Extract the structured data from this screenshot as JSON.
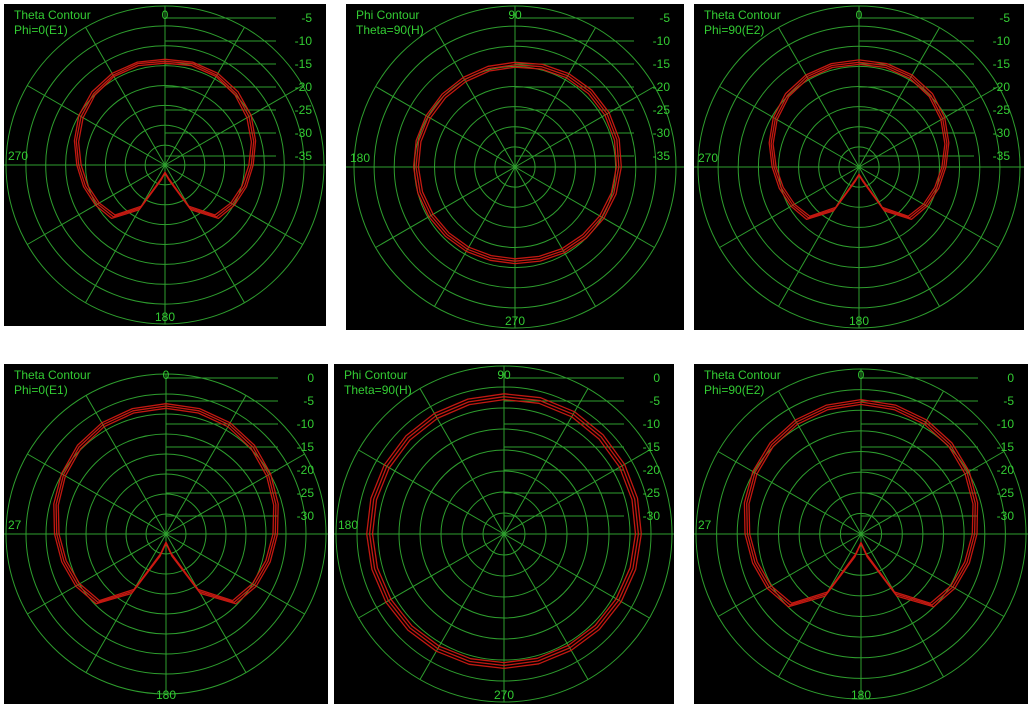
{
  "colors": {
    "background": "#000000",
    "grid": "#2e9e2e",
    "label": "#33cc33",
    "trace": "#cc1a12"
  },
  "chart_data": [
    {
      "type": "polar",
      "title": "Theta Contour",
      "subtitle": "Phi=0(E1)",
      "angle_labels": {
        "top": "0",
        "left": "270",
        "bottom": "180",
        "right": ""
      },
      "radial_ticks": [
        "-5",
        "-10",
        "-15",
        "-20",
        "-25",
        "-30",
        "-35"
      ],
      "rlim": [
        -40,
        0
      ],
      "pattern": "theta",
      "series": [
        {
          "values": [
            -13.4,
            -13.2,
            -13.4,
            -14.0,
            -15.0,
            -16.4,
            -17.8,
            -18.8,
            -19.8,
            -21.0,
            -27.0,
            -36.0,
            -38.0,
            -36.0,
            -27.0,
            -21.0,
            -19.8,
            -18.8,
            -17.8,
            -16.4,
            -15.0,
            -14.0,
            -13.4,
            -13.2
          ]
        },
        {
          "values": [
            -13.9,
            -13.6,
            -13.9,
            -14.6,
            -15.6,
            -16.9,
            -18.3,
            -19.3,
            -20.4,
            -21.6,
            -27.5,
            -36.3,
            -38.0,
            -36.3,
            -27.5,
            -21.6,
            -20.4,
            -19.3,
            -18.3,
            -16.9,
            -15.6,
            -14.6,
            -13.9,
            -13.6
          ]
        },
        {
          "values": [
            -14.4,
            -14.1,
            -14.3,
            -15.1,
            -16.2,
            -17.5,
            -18.9,
            -19.9,
            -20.9,
            -22.2,
            -28.0,
            -36.6,
            -38.2,
            -36.6,
            -28.0,
            -22.2,
            -20.9,
            -19.9,
            -18.9,
            -17.5,
            -16.2,
            -15.1,
            -14.3,
            -14.1
          ]
        }
      ]
    },
    {
      "type": "polar",
      "title": "Phi Contour",
      "subtitle": "Theta=90(H)",
      "angle_labels": {
        "top": "90",
        "left": "180",
        "bottom": "270",
        "right": ""
      },
      "radial_ticks": [
        "-5",
        "-10",
        "-15",
        "-20",
        "-25",
        "-30",
        "-35"
      ],
      "rlim": [
        -40,
        0
      ],
      "pattern": "phi",
      "series": [
        {
          "values": [
            -14.0,
            -13.6,
            -13.2,
            -13.0,
            -13.0,
            -13.2,
            -13.6,
            -14.0,
            -14.5,
            -15.0,
            -15.4,
            -15.8,
            -16.0,
            -16.0,
            -15.8,
            -15.6,
            -15.3,
            -15.0,
            -14.8,
            -14.6,
            -14.5,
            -14.4,
            -14.3,
            -14.1
          ]
        },
        {
          "values": [
            -14.6,
            -14.2,
            -13.8,
            -13.6,
            -13.6,
            -13.8,
            -14.2,
            -14.6,
            -15.1,
            -15.6,
            -16.0,
            -16.4,
            -16.6,
            -16.6,
            -16.4,
            -16.2,
            -15.9,
            -15.6,
            -15.4,
            -15.2,
            -15.1,
            -15.0,
            -14.9,
            -14.7
          ]
        },
        {
          "values": [
            -15.2,
            -14.8,
            -14.4,
            -14.2,
            -14.2,
            -14.4,
            -14.8,
            -15.2,
            -15.7,
            -16.2,
            -16.6,
            -17.0,
            -17.2,
            -17.2,
            -17.0,
            -16.8,
            -16.5,
            -16.2,
            -16.0,
            -15.8,
            -15.7,
            -15.6,
            -15.5,
            -15.3
          ]
        }
      ]
    },
    {
      "type": "polar",
      "title": "Theta Contour",
      "subtitle": "Phi=90(E2)",
      "angle_labels": {
        "top": "0",
        "left": "270",
        "bottom": "180",
        "right": ""
      },
      "radial_ticks": [
        "-5",
        "-10",
        "-15",
        "-20",
        "-25",
        "-30",
        "-35"
      ],
      "rlim": [
        -40,
        0
      ],
      "pattern": "theta",
      "series": [
        {
          "values": [
            -13.4,
            -13.4,
            -13.6,
            -14.2,
            -15.4,
            -16.9,
            -18.4,
            -19.5,
            -20.5,
            -21.6,
            -27.4,
            -36.2,
            -38.0,
            -36.2,
            -27.4,
            -21.6,
            -20.5,
            -19.5,
            -18.4,
            -16.9,
            -15.4,
            -14.2,
            -13.6,
            -13.4
          ]
        },
        {
          "values": [
            -14.0,
            -13.9,
            -14.1,
            -14.8,
            -16.0,
            -17.4,
            -18.9,
            -20.0,
            -21.0,
            -22.2,
            -27.9,
            -36.5,
            -38.1,
            -36.5,
            -27.9,
            -22.2,
            -21.0,
            -20.0,
            -18.9,
            -17.4,
            -16.0,
            -14.8,
            -14.1,
            -13.9
          ]
        },
        {
          "values": [
            -14.5,
            -14.4,
            -14.6,
            -15.3,
            -16.5,
            -17.9,
            -19.4,
            -20.5,
            -21.5,
            -22.7,
            -28.4,
            -36.8,
            -38.2,
            -36.8,
            -28.4,
            -22.7,
            -21.5,
            -20.5,
            -19.4,
            -17.9,
            -16.5,
            -15.3,
            -14.6,
            -14.4
          ]
        }
      ]
    },
    {
      "type": "polar",
      "title": "Theta Contour",
      "subtitle": "Phi=0(E1)",
      "angle_labels": {
        "top": "0",
        "left": "27",
        "bottom": "180",
        "right": ""
      },
      "radial_ticks": [
        "0",
        "-5",
        "-10",
        "-15",
        "-20",
        "-25",
        "-30"
      ],
      "rlim": [
        -35,
        0
      ],
      "pattern": "theta",
      "series": [
        {
          "values": [
            -6.5,
            -6.6,
            -6.9,
            -7.6,
            -8.6,
            -9.6,
            -10.6,
            -11.4,
            -12.2,
            -13.4,
            -20.0,
            -30.0,
            -33.0,
            -30.0,
            -20.0,
            -13.4,
            -12.2,
            -11.4,
            -10.6,
            -9.6,
            -8.6,
            -7.6,
            -6.9,
            -6.6
          ]
        },
        {
          "values": [
            -7.0,
            -7.1,
            -7.4,
            -8.1,
            -9.1,
            -10.1,
            -11.1,
            -11.9,
            -12.7,
            -13.9,
            -20.5,
            -30.3,
            -33.1,
            -30.3,
            -20.5,
            -13.9,
            -12.7,
            -11.9,
            -11.1,
            -10.1,
            -9.1,
            -8.1,
            -7.4,
            -7.1
          ]
        },
        {
          "values": [
            -7.5,
            -7.6,
            -7.9,
            -8.6,
            -9.6,
            -10.6,
            -11.6,
            -12.4,
            -13.2,
            -14.4,
            -21.0,
            -30.6,
            -33.2,
            -30.6,
            -21.0,
            -14.4,
            -13.2,
            -12.4,
            -11.6,
            -10.6,
            -9.6,
            -8.6,
            -7.9,
            -7.6
          ]
        }
      ]
    },
    {
      "type": "polar",
      "title": "Phi Contour",
      "subtitle": "Theta=90(H)",
      "angle_labels": {
        "top": "90",
        "left": "180",
        "bottom": "270",
        "right": ""
      },
      "radial_ticks": [
        "0",
        "-5",
        "-10",
        "-15",
        "-20",
        "-25",
        "-30"
      ],
      "rlim": [
        -35,
        0
      ],
      "pattern": "phi",
      "series": [
        {
          "values": [
            -5.8,
            -5.6,
            -5.6,
            -5.8,
            -6.0,
            -6.2,
            -6.4,
            -6.6,
            -6.8,
            -6.9,
            -7.0,
            -7.0,
            -7.0,
            -6.9,
            -6.8,
            -6.7,
            -6.6,
            -6.5,
            -6.4,
            -6.3,
            -6.2,
            -6.1,
            -6.0,
            -5.9
          ]
        },
        {
          "values": [
            -6.4,
            -6.2,
            -6.2,
            -6.4,
            -6.6,
            -6.8,
            -7.0,
            -7.2,
            -7.4,
            -7.5,
            -7.6,
            -7.6,
            -7.6,
            -7.5,
            -7.4,
            -7.3,
            -7.2,
            -7.1,
            -7.0,
            -6.9,
            -6.8,
            -6.7,
            -6.6,
            -6.5
          ]
        },
        {
          "values": [
            -7.0,
            -6.8,
            -6.8,
            -7.0,
            -7.2,
            -7.4,
            -7.6,
            -7.8,
            -8.0,
            -8.1,
            -8.2,
            -8.2,
            -8.2,
            -8.1,
            -8.0,
            -7.9,
            -7.8,
            -7.7,
            -7.6,
            -7.5,
            -7.4,
            -7.3,
            -7.2,
            -7.1
          ]
        }
      ]
    },
    {
      "type": "polar",
      "title": "Theta Contour",
      "subtitle": "Phi=90(E2)",
      "angle_labels": {
        "top": "0",
        "left": "27",
        "bottom": "180",
        "right": ""
      },
      "radial_ticks": [
        "0",
        "-5",
        "-10",
        "-15",
        "-20",
        "-25",
        "-30"
      ],
      "rlim": [
        -35,
        0
      ],
      "pattern": "theta",
      "series": [
        {
          "values": [
            -6.5,
            -6.7,
            -7.1,
            -7.7,
            -8.5,
            -9.4,
            -10.4,
            -11.2,
            -12.0,
            -13.2,
            -19.8,
            -30.0,
            -33.0,
            -30.0,
            -19.8,
            -13.2,
            -12.0,
            -11.2,
            -10.4,
            -9.4,
            -8.5,
            -7.7,
            -7.1,
            -6.7
          ]
        },
        {
          "values": [
            -7.0,
            -7.2,
            -7.6,
            -8.2,
            -9.0,
            -9.9,
            -10.9,
            -11.7,
            -12.5,
            -13.7,
            -20.3,
            -30.3,
            -33.1,
            -30.3,
            -20.3,
            -13.7,
            -12.5,
            -11.7,
            -10.9,
            -9.9,
            -9.0,
            -8.2,
            -7.6,
            -7.2
          ]
        },
        {
          "values": [
            -7.5,
            -7.7,
            -8.1,
            -8.7,
            -9.5,
            -10.4,
            -11.4,
            -12.2,
            -13.0,
            -14.2,
            -20.8,
            -30.6,
            -33.2,
            -30.6,
            -20.8,
            -14.2,
            -13.0,
            -12.2,
            -11.4,
            -10.4,
            -9.5,
            -8.7,
            -8.1,
            -7.7
          ]
        }
      ]
    }
  ]
}
